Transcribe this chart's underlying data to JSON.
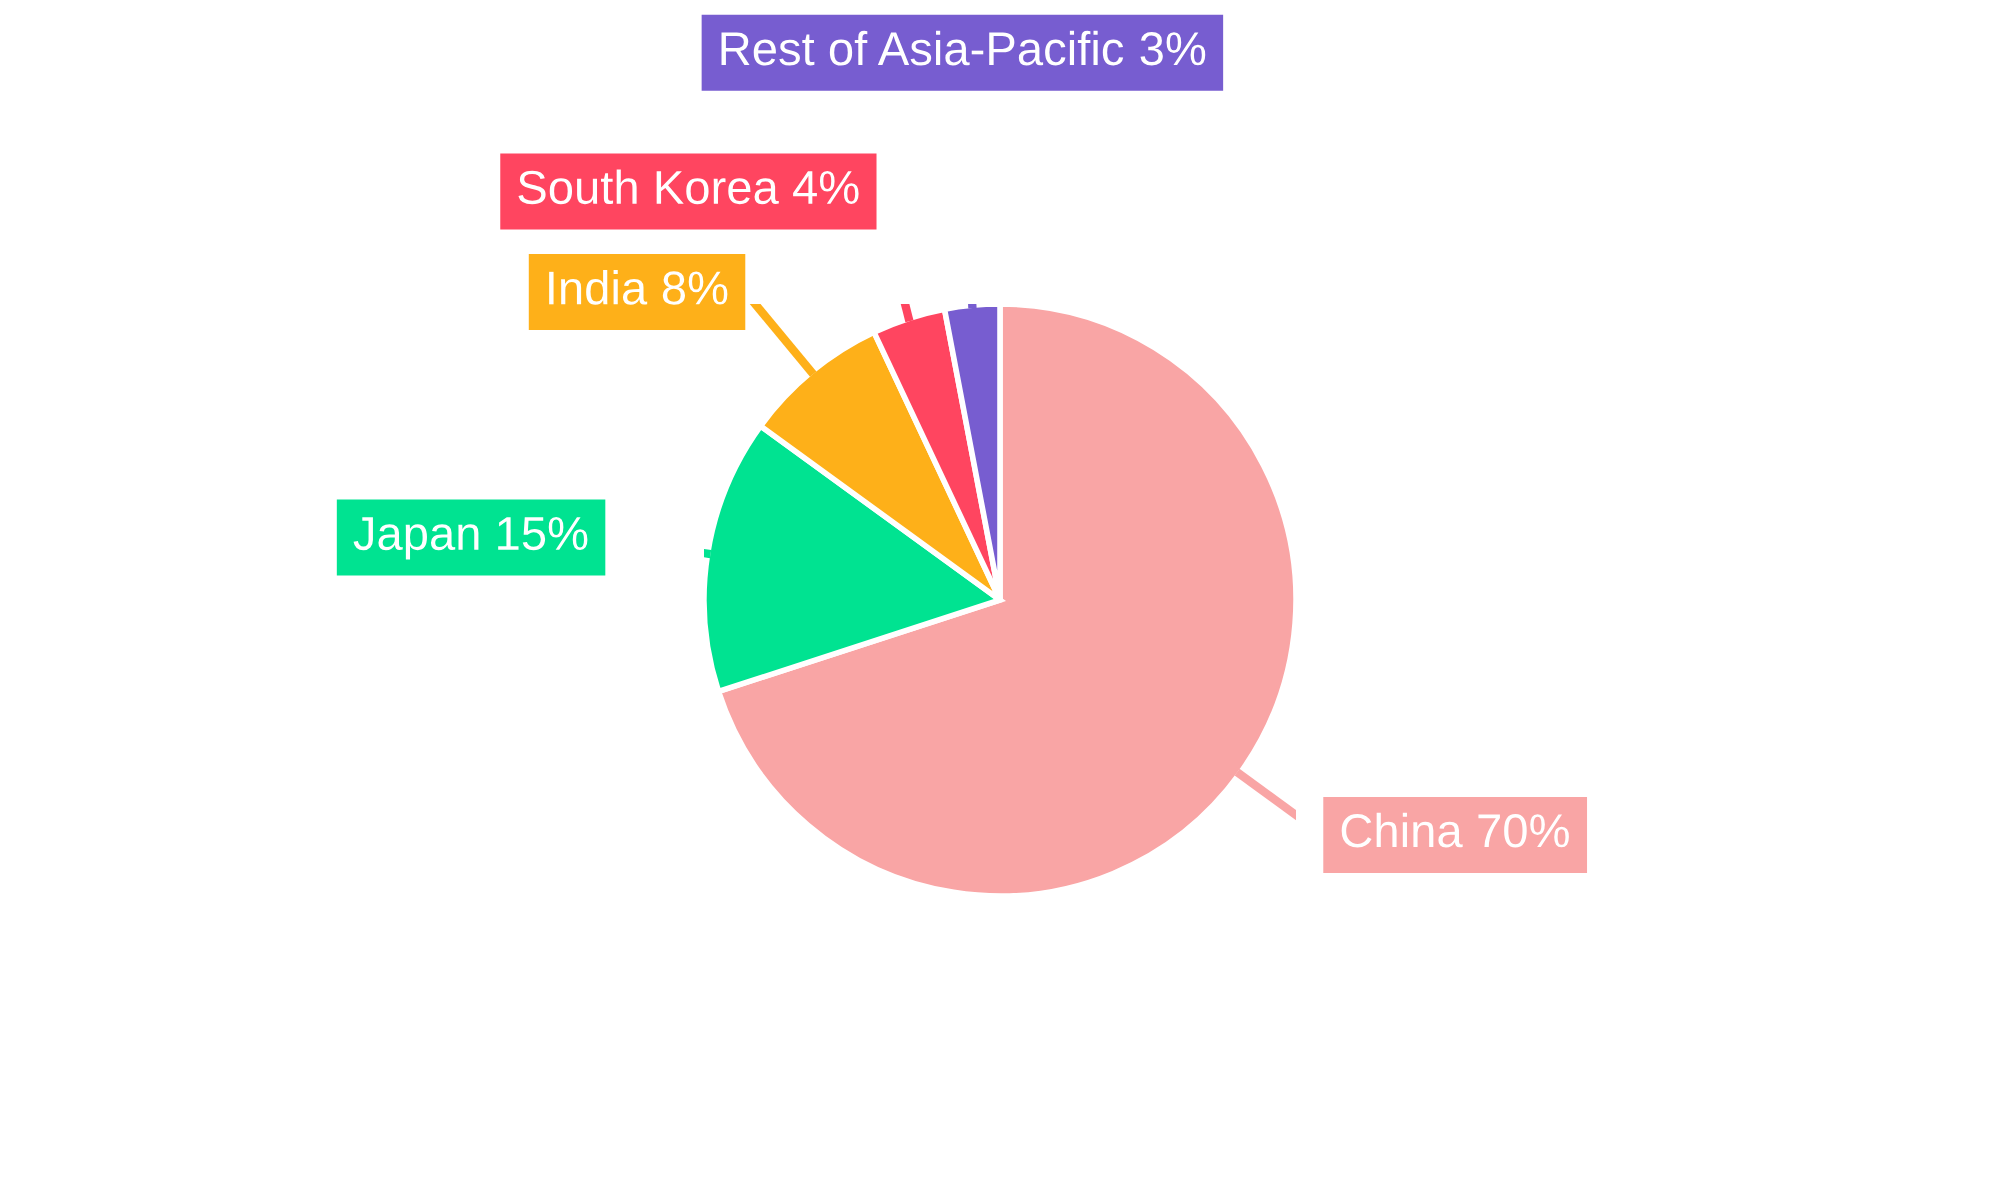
{
  "chart_data": {
    "type": "pie",
    "categories": [
      "China",
      "Japan",
      "India",
      "South Korea",
      "Rest of Asia-Pacific"
    ],
    "values": [
      70,
      15,
      8,
      4,
      3
    ],
    "colors": [
      "#f9a5a5",
      "#00e391",
      "#feb019",
      "#ff4560",
      "#775dd0"
    ],
    "value_labels": [
      "70%",
      "15%",
      "8%",
      "4%",
      "3%"
    ]
  }
}
